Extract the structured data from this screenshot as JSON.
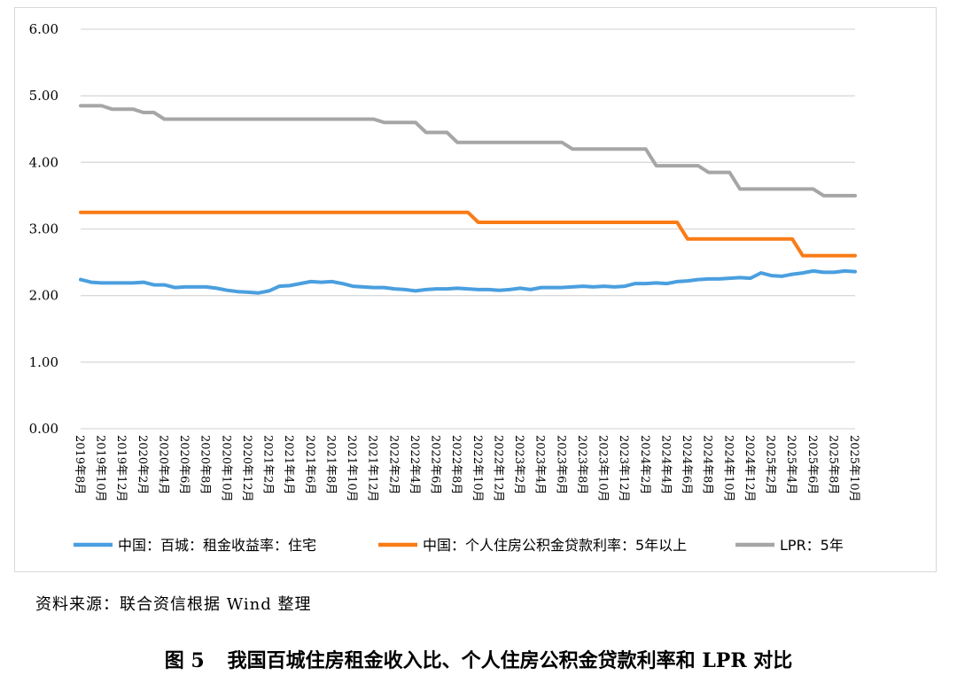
{
  "chart_data": {
    "type": "line",
    "title": "",
    "xlabel": "",
    "ylabel": "",
    "ylim": [
      0,
      6
    ],
    "y_ticks": [
      "0.00",
      "1.00",
      "2.00",
      "3.00",
      "4.00",
      "5.00",
      "6.00"
    ],
    "grid": "horizontal",
    "legend_position": "bottom",
    "x_tick_labels": [
      "2019年8月",
      "2019年10月",
      "2019年12月",
      "2020年2月",
      "2020年4月",
      "2020年6月",
      "2020年8月",
      "2020年10月",
      "2020年12月",
      "2021年2月",
      "2021年4月",
      "2021年6月",
      "2021年8月",
      "2021年10月",
      "2021年12月",
      "2022年2月",
      "2022年4月",
      "2022年6月",
      "2022年8月",
      "2022年10月",
      "2022年12月",
      "2023年2月",
      "2023年4月",
      "2023年6月",
      "2023年8月",
      "2023年10月",
      "2023年12月",
      "2024年2月",
      "2024年4月",
      "2024年6月",
      "2024年8月",
      "2024年10月",
      "2024年12月",
      "2025年2月",
      "2025年4月",
      "2025年6月",
      "2025年8月",
      "2025年10月"
    ],
    "x": [
      "2019-08",
      "2019-09",
      "2019-10",
      "2019-11",
      "2019-12",
      "2020-01",
      "2020-02",
      "2020-03",
      "2020-04",
      "2020-05",
      "2020-06",
      "2020-07",
      "2020-08",
      "2020-09",
      "2020-10",
      "2020-11",
      "2020-12",
      "2021-01",
      "2021-02",
      "2021-03",
      "2021-04",
      "2021-05",
      "2021-06",
      "2021-07",
      "2021-08",
      "2021-09",
      "2021-10",
      "2021-11",
      "2021-12",
      "2022-01",
      "2022-02",
      "2022-03",
      "2022-04",
      "2022-05",
      "2022-06",
      "2022-07",
      "2022-08",
      "2022-09",
      "2022-10",
      "2022-11",
      "2022-12",
      "2023-01",
      "2023-02",
      "2023-03",
      "2023-04",
      "2023-05",
      "2023-06",
      "2023-07",
      "2023-08",
      "2023-09",
      "2023-10",
      "2023-11",
      "2023-12",
      "2024-01",
      "2024-02",
      "2024-03",
      "2024-04",
      "2024-05",
      "2024-06",
      "2024-07",
      "2024-08",
      "2024-09",
      "2024-10",
      "2024-11",
      "2024-12",
      "2025-01",
      "2025-02",
      "2025-03",
      "2025-04",
      "2025-05",
      "2025-06",
      "2025-07",
      "2025-08",
      "2025-09",
      "2025-10"
    ],
    "series": [
      {
        "name": "中国：百城：租金收益率：住宅",
        "color": "#4a9fdf",
        "values": [
          2.24,
          2.2,
          2.19,
          2.19,
          2.19,
          2.19,
          2.2,
          2.16,
          2.16,
          2.12,
          2.13,
          2.13,
          2.13,
          2.11,
          2.08,
          2.06,
          2.05,
          2.04,
          2.07,
          2.14,
          2.15,
          2.18,
          2.21,
          2.2,
          2.21,
          2.18,
          2.14,
          2.13,
          2.12,
          2.12,
          2.1,
          2.09,
          2.07,
          2.09,
          2.1,
          2.1,
          2.11,
          2.1,
          2.09,
          2.09,
          2.08,
          2.09,
          2.11,
          2.09,
          2.12,
          2.12,
          2.12,
          2.13,
          2.14,
          2.13,
          2.14,
          2.13,
          2.14,
          2.18,
          2.18,
          2.19,
          2.18,
          2.21,
          2.22,
          2.24,
          2.25,
          2.25,
          2.26,
          2.27,
          2.26,
          2.34,
          2.3,
          2.29,
          2.32,
          2.34,
          2.37,
          2.35,
          2.35,
          2.37,
          2.36
        ]
      },
      {
        "name": "中国：个人住房公积金贷款利率：5年以上",
        "color": "#f97c16",
        "values": [
          3.25,
          3.25,
          3.25,
          3.25,
          3.25,
          3.25,
          3.25,
          3.25,
          3.25,
          3.25,
          3.25,
          3.25,
          3.25,
          3.25,
          3.25,
          3.25,
          3.25,
          3.25,
          3.25,
          3.25,
          3.25,
          3.25,
          3.25,
          3.25,
          3.25,
          3.25,
          3.25,
          3.25,
          3.25,
          3.25,
          3.25,
          3.25,
          3.25,
          3.25,
          3.25,
          3.25,
          3.25,
          3.25,
          3.1,
          3.1,
          3.1,
          3.1,
          3.1,
          3.1,
          3.1,
          3.1,
          3.1,
          3.1,
          3.1,
          3.1,
          3.1,
          3.1,
          3.1,
          3.1,
          3.1,
          3.1,
          3.1,
          3.1,
          2.85,
          2.85,
          2.85,
          2.85,
          2.85,
          2.85,
          2.85,
          2.85,
          2.85,
          2.85,
          2.85,
          2.6,
          2.6,
          2.6,
          2.6,
          2.6,
          2.6
        ]
      },
      {
        "name": "LPR：5年",
        "color": "#a6a6a6",
        "values": [
          4.85,
          4.85,
          4.85,
          4.8,
          4.8,
          4.8,
          4.75,
          4.75,
          4.65,
          4.65,
          4.65,
          4.65,
          4.65,
          4.65,
          4.65,
          4.65,
          4.65,
          4.65,
          4.65,
          4.65,
          4.65,
          4.65,
          4.65,
          4.65,
          4.65,
          4.65,
          4.65,
          4.65,
          4.65,
          4.6,
          4.6,
          4.6,
          4.6,
          4.45,
          4.45,
          4.45,
          4.3,
          4.3,
          4.3,
          4.3,
          4.3,
          4.3,
          4.3,
          4.3,
          4.3,
          4.3,
          4.3,
          4.2,
          4.2,
          4.2,
          4.2,
          4.2,
          4.2,
          4.2,
          4.2,
          3.95,
          3.95,
          3.95,
          3.95,
          3.95,
          3.85,
          3.85,
          3.85,
          3.6,
          3.6,
          3.6,
          3.6,
          3.6,
          3.6,
          3.6,
          3.6,
          3.5,
          3.5,
          3.5,
          3.5
        ]
      }
    ]
  },
  "source_note": "资料来源：联合资信根据 Wind 整理",
  "caption": {
    "number": "图 5",
    "text": "我国百城住房租金收入比、个人住房公积金贷款利率和 LPR 对比"
  }
}
